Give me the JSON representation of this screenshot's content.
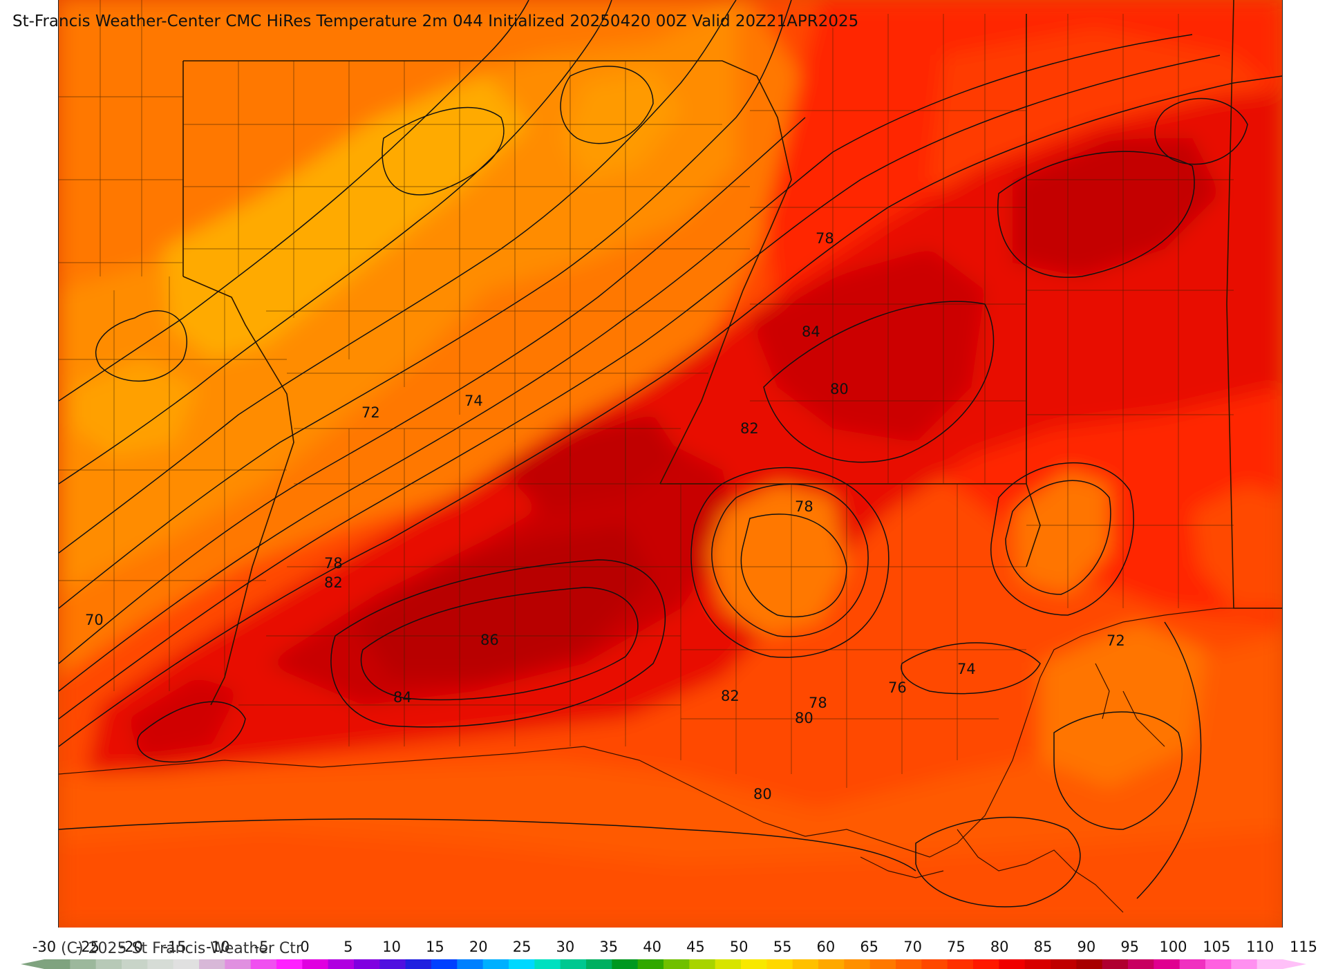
{
  "title": "St-Francis Weather-Center CMC HiRes Temperature 2m  044 Initialized 20250420 00Z Valid 20Z21APR2025",
  "copyright": "(C) 2025 St Francis Weather Ctr",
  "colors": {
    "yellow_orange": "#ffaa00",
    "orange": "#ff8800",
    "orange_red": "#ff6600",
    "red_orange": "#ff4400",
    "red": "#ff1a00",
    "deep_red": "#dd0000",
    "dark_red": "#bb0000"
  },
  "contour_labels": [
    "78",
    "84",
    "80",
    "82",
    "72",
    "74",
    "78",
    "78",
    "82",
    "70",
    "86",
    "84",
    "82",
    "78",
    "80",
    "76",
    "74",
    "72",
    "80"
  ],
  "colorbar": {
    "ticks": [
      "-30",
      "-25",
      "-20",
      "-15",
      "-10",
      "-5",
      "0",
      "5",
      "10",
      "15",
      "20",
      "25",
      "30",
      "35",
      "40",
      "45",
      "50",
      "55",
      "60",
      "65",
      "70",
      "75",
      "80",
      "85",
      "90",
      "95",
      "100",
      "105",
      "110",
      "115"
    ],
    "colors": [
      "#7fa37f",
      "#9cb89c",
      "#b7c9b7",
      "#c8d4c8",
      "#d6dcd6",
      "#e0e0e0",
      "#d8b8d8",
      "#e090e0",
      "#f050f0",
      "#ff20ff",
      "#e000e0",
      "#b000e0",
      "#8000e0",
      "#5010e0",
      "#2020e0",
      "#0040ff",
      "#0080ff",
      "#00b0ff",
      "#00d8ff",
      "#00e0c0",
      "#00c890",
      "#00b060",
      "#009820",
      "#30a800",
      "#70c000",
      "#a8d400",
      "#d8e400",
      "#f8e800",
      "#ffd800",
      "#ffc000",
      "#ffa800",
      "#ff9000",
      "#ff7800",
      "#ff6000",
      "#ff4800",
      "#ff3000",
      "#ff1800",
      "#f00000",
      "#d80000",
      "#c00000",
      "#a80000",
      "#b00030",
      "#c80060",
      "#e00090",
      "#f030c0",
      "#ff60e0",
      "#ff90f0",
      "#ffc0f8"
    ]
  }
}
